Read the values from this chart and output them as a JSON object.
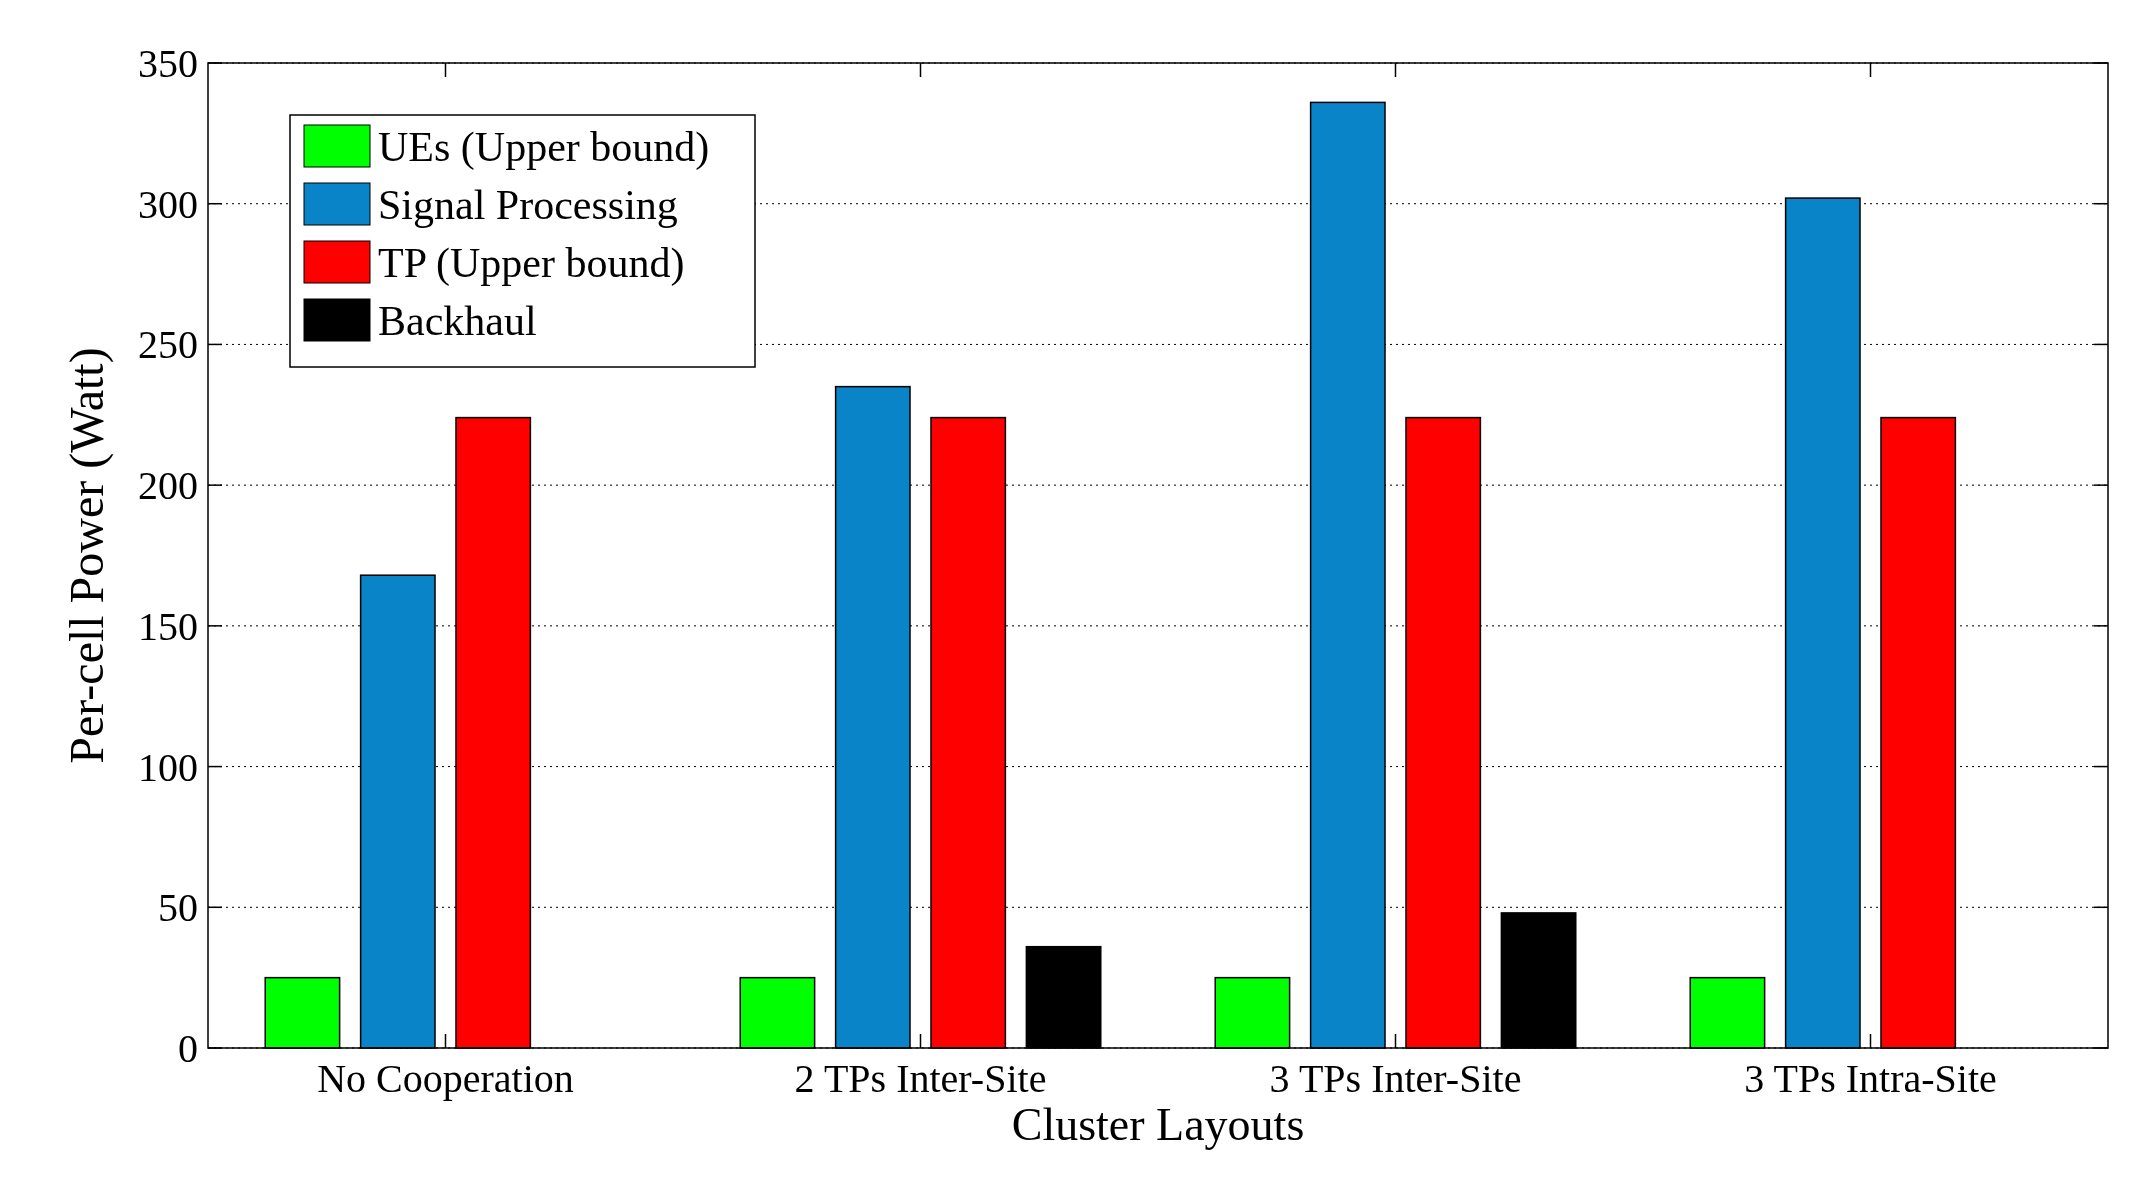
{
  "chart_data": {
    "type": "bar",
    "xlabel": "Cluster Layouts",
    "ylabel": "Per-cell Power (Watt)",
    "categories": [
      "No Cooperation",
      "2 TPs Inter-Site",
      "3 TPs Inter-Site",
      "3 TPs Intra-Site"
    ],
    "series": [
      {
        "name": "UEs (Upper bound)",
        "color": "#00ff00",
        "values": [
          25,
          25,
          25,
          25
        ]
      },
      {
        "name": "Signal Processing",
        "color": "#0a84c8",
        "values": [
          168,
          235,
          336,
          302
        ]
      },
      {
        "name": "TP (Upper bound)",
        "color": "#ff0000",
        "values": [
          224,
          224,
          224,
          224
        ]
      },
      {
        "name": "Backhaul",
        "color": "#000000",
        "values": [
          null,
          36,
          48,
          null
        ]
      }
    ],
    "ylim": [
      0,
      350
    ],
    "yticks": [
      0,
      50,
      100,
      150,
      200,
      250,
      300,
      350
    ],
    "grid": "y",
    "legend": "top left"
  }
}
